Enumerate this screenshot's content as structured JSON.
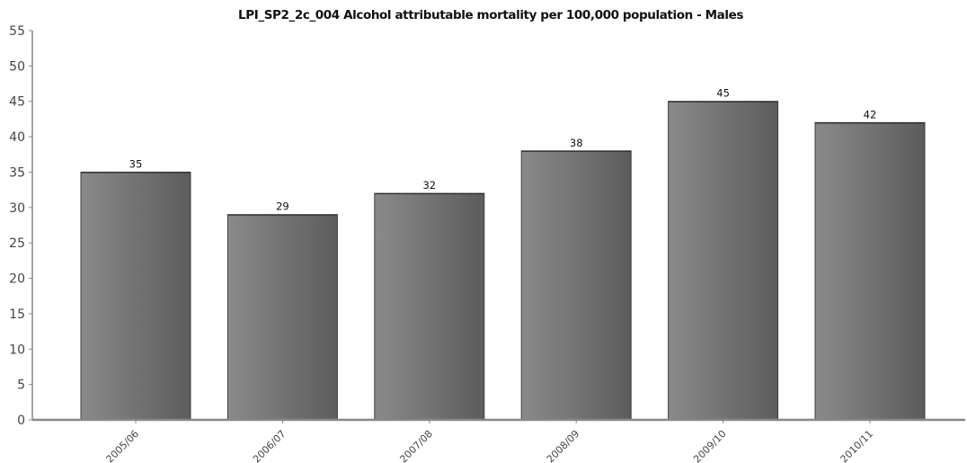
{
  "chart_data": {
    "type": "bar",
    "title": "LPI_SP2_2c_004 Alcohol attributable mortality per 100,000 population - Males",
    "categories": [
      "2005/06",
      "2006/07",
      "2007/08",
      "2008/09",
      "2009/10",
      "2010/11"
    ],
    "series": [
      {
        "values": [
          35,
          29,
          32,
          38,
          45,
          42
        ]
      }
    ],
    "data_labels": [
      "35",
      "29",
      "32",
      "38",
      "45",
      "42"
    ],
    "ylim": [
      0,
      55
    ],
    "yticks": [
      0,
      5,
      10,
      15,
      20,
      25,
      30,
      35,
      40,
      45,
      50,
      55
    ],
    "ytick_labels": [
      "0",
      "5",
      "10",
      "15",
      "20",
      "25",
      "30",
      "35",
      "40",
      "45",
      "50",
      "55"
    ],
    "xlabel": "",
    "ylabel": "",
    "grid": false,
    "legend": "none",
    "bar_color_light": "#8a8a8a",
    "bar_color_dark": "#5c5c5c",
    "axis_color": "#888888"
  }
}
